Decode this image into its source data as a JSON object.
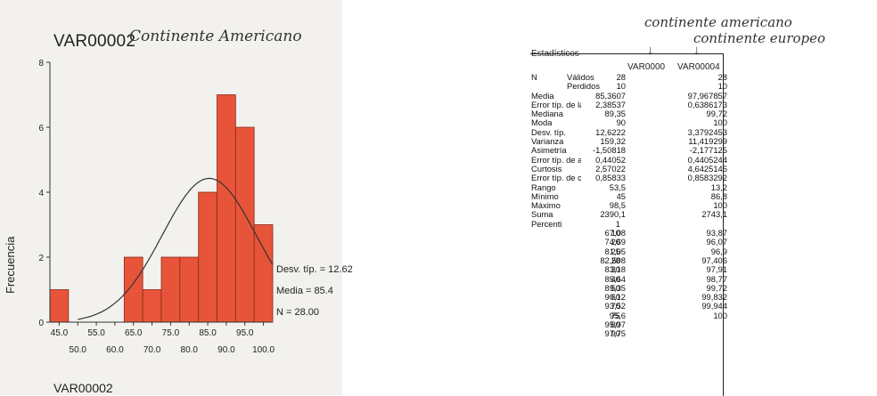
{
  "histogram": {
    "title": "VAR00002",
    "handwritten_note": "Continente Americano",
    "ylabel": "Frecuencia",
    "xlabel": "VAR00002",
    "stats": [
      "Desv. típ. = 12.62",
      "Media = 85.4",
      "N = 28.00"
    ],
    "colors": {
      "bar": "#e8543a",
      "bar_edge": "#8a2a18",
      "curve": "#333333"
    }
  },
  "chart_data": {
    "type": "bar",
    "title": "VAR00002",
    "ylabel": "Frecuencia",
    "xlabel": "VAR00002",
    "categories": [
      "45.0",
      "50.0",
      "55.0",
      "60.0",
      "65.0",
      "70.0",
      "75.0",
      "80.0",
      "85.0",
      "90.0",
      "95.0",
      "100.0"
    ],
    "values": [
      1,
      0,
      0,
      0,
      2,
      1,
      2,
      2,
      4,
      7,
      6,
      3
    ],
    "xticks_lower": [
      "45.0",
      "55.0",
      "65.0",
      "75.0",
      "85.0",
      "95.0"
    ],
    "xticks_upper": [
      "50.0",
      "60.0",
      "70.0",
      "80.0",
      "90.0",
      "100.0"
    ],
    "yticks": [
      "0",
      "2",
      "4",
      "6",
      "8"
    ],
    "ylim": [
      0,
      8
    ],
    "normal_curve": {
      "mean": 85.4,
      "sd": 12.62,
      "n": 28,
      "bin_width": 5
    },
    "grid": false
  },
  "stats_table": {
    "heading": "Estadísticos",
    "columns": [
      "VAR0000",
      "VAR00004"
    ],
    "handwritten": [
      "continente americano",
      "continente europeo"
    ],
    "rows": [
      [
        "N",
        "Válidos",
        "28",
        "28"
      ],
      [
        "",
        "Perdidos",
        "10",
        "10"
      ],
      [
        "Media",
        "",
        "85,3607",
        "97,967857"
      ],
      [
        "Error típ. de la medi",
        "",
        "2,38537",
        "0,6386173"
      ],
      [
        "Mediana",
        "",
        "89,35",
        "99,72"
      ],
      [
        "Moda",
        "",
        "90",
        "100"
      ],
      [
        "Desv. típ.",
        "",
        "12,6222",
        "3,3792453"
      ],
      [
        "Varianza",
        "",
        "159,32",
        "11,419299"
      ],
      [
        "Asimetría",
        "",
        "-1,50818",
        "-2,177125"
      ],
      [
        "Error típ. de asimetr",
        "",
        "0,44052",
        "0,4405244"
      ],
      [
        "Curtosis",
        "",
        "2,57022",
        "4,6425145"
      ],
      [
        "Error típ. de curtosis",
        "",
        "0,85833",
        "0,8583292"
      ],
      [
        "Rango",
        "",
        "53,5",
        "13,2"
      ],
      [
        "Mínimo",
        "",
        "45",
        "86,8"
      ],
      [
        "Máximo",
        "",
        "98,5",
        "100"
      ],
      [
        "Suma",
        "",
        "2390,1",
        "2743,1"
      ]
    ],
    "percentile_label": "Percenti",
    "percentiles": [
      [
        "1",
        "",
        ""
      ],
      [
        "10",
        "67,08",
        "93,87"
      ],
      [
        "20",
        "74,69",
        "96,07"
      ],
      [
        "25",
        "81,05",
        "96,9"
      ],
      [
        "28",
        "82,508",
        "97,406"
      ],
      [
        "30",
        "83,18",
        "97,91"
      ],
      [
        "40",
        "85,64",
        "98,77"
      ],
      [
        "50",
        "89,35",
        "99,72"
      ],
      [
        "60",
        "90,12",
        "99,832"
      ],
      [
        "70",
        "93,52",
        "99,944"
      ],
      [
        "75",
        "95,6",
        "100"
      ],
      [
        "80",
        "95,97",
        ""
      ],
      [
        "90",
        "97,75",
        ""
      ]
    ]
  }
}
